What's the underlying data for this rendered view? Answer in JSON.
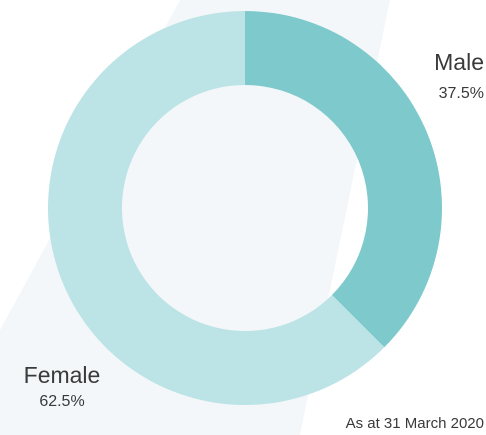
{
  "chart_data": {
    "type": "donut",
    "categories": [
      "Male",
      "Female"
    ],
    "values": [
      37.5,
      62.5
    ],
    "value_labels": [
      "37.5%",
      "62.5%"
    ],
    "colors": [
      "#7dc9cb",
      "#bce3e5"
    ],
    "annotation": "As at 31 March 2020"
  }
}
